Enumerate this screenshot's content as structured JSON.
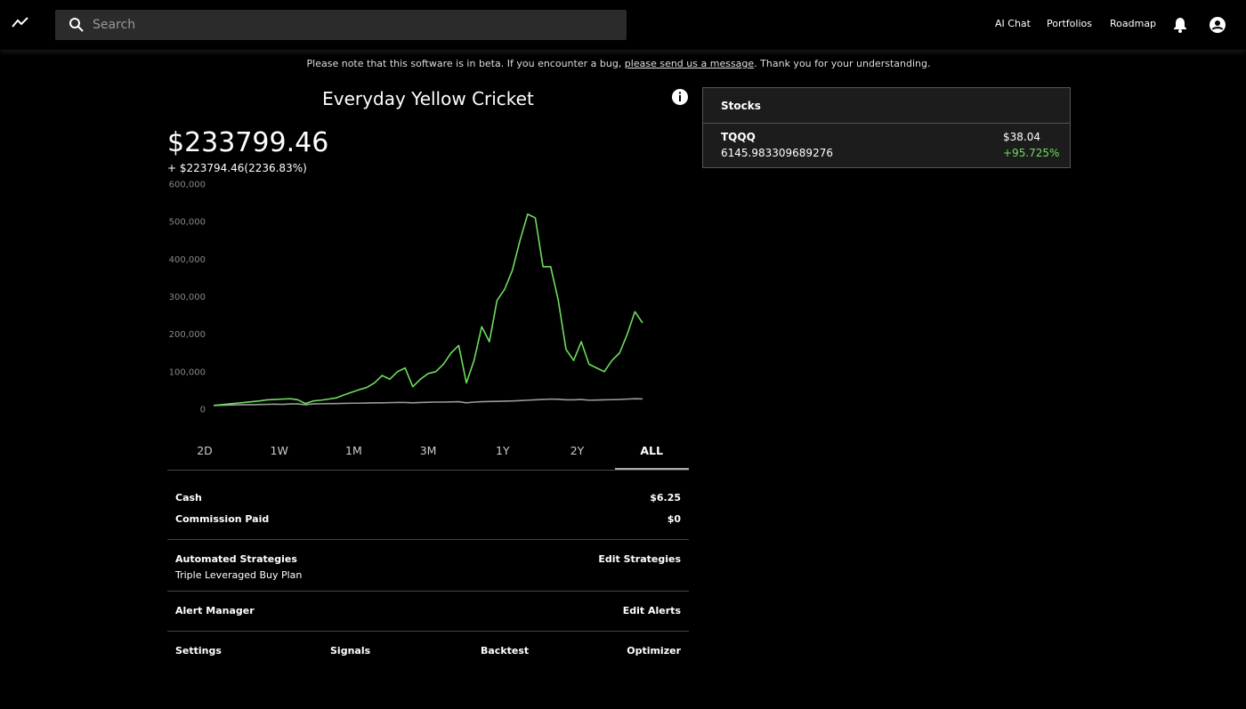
{
  "header": {
    "search_placeholder": "Search",
    "nav": [
      "AI Chat",
      "Portfolios",
      "Roadmap"
    ]
  },
  "notice": {
    "before": "Please note that this software is in beta. If you encounter a bug, ",
    "link": "please send us a message",
    "after": ". Thank you for your understanding."
  },
  "portfolio": {
    "title": "Everyday Yellow Cricket",
    "value": "$233799.46",
    "change": "+ $223794.46(2236.83%)"
  },
  "chart_data": {
    "type": "line",
    "ylim": [
      0,
      600000
    ],
    "yticks": [
      0,
      {
        "value": 100000,
        "label": "100,000"
      },
      {
        "value": 200000,
        "label": "200,000"
      },
      {
        "value": 300000,
        "label": "300,000"
      },
      {
        "value": 400000,
        "label": "400,000"
      },
      {
        "value": 500000,
        "label": "500,000"
      },
      {
        "value": 600000,
        "label": "600,000"
      }
    ],
    "grid": false,
    "series": [
      {
        "color": "#6fdc5f",
        "values": [
          10000,
          12000,
          14000,
          16000,
          18000,
          20000,
          22000,
          25000,
          26000,
          27000,
          28000,
          25000,
          15000,
          22000,
          24000,
          27000,
          30000,
          38000,
          45000,
          52000,
          58000,
          70000,
          90000,
          80000,
          100000,
          110000,
          60000,
          80000,
          95000,
          100000,
          120000,
          150000,
          170000,
          70000,
          130000,
          220000,
          180000,
          290000,
          320000,
          370000,
          450000,
          520000,
          510000,
          380000,
          380000,
          290000,
          160000,
          130000,
          180000,
          120000,
          110000,
          100000,
          130000,
          150000,
          200000,
          260000,
          230000
        ]
      },
      {
        "color": "#9a9a9a",
        "values": [
          10000,
          10500,
          11000,
          11500,
          12000,
          12000,
          12500,
          13000,
          13500,
          13000,
          14000,
          14000,
          12000,
          14000,
          14500,
          15000,
          15000,
          15500,
          16000,
          16000,
          16500,
          17000,
          17000,
          17500,
          18000,
          18000,
          17000,
          18000,
          18500,
          19000,
          19000,
          19500,
          20000,
          17000,
          19000,
          20000,
          20500,
          21000,
          21500,
          22000,
          23000,
          24000,
          25000,
          26000,
          27000,
          26500,
          25000,
          25000,
          26000,
          24000,
          24500,
          25000,
          25500,
          26000,
          27000,
          28000,
          27500
        ]
      }
    ]
  },
  "tabs": [
    "2D",
    "1W",
    "1M",
    "3M",
    "1Y",
    "2Y",
    "ALL"
  ],
  "details": {
    "cash_label": "Cash",
    "cash": "$6.25",
    "commission_label": "Commission Paid",
    "commission": "$0",
    "strategies_label": "Automated Strategies",
    "strategies_edit": "Edit Strategies",
    "strategy": "Triple Leveraged Buy Plan",
    "alerts_label": "Alert Manager",
    "alerts_edit": "Edit Alerts",
    "links": [
      "Settings",
      "Signals",
      "Backtest",
      "Optimizer"
    ]
  },
  "stocks": {
    "title": "Stocks",
    "rows": [
      {
        "symbol": "TQQQ",
        "shares": "6145.983309689276",
        "price": "$38.04",
        "change": "+95.725%"
      }
    ]
  }
}
